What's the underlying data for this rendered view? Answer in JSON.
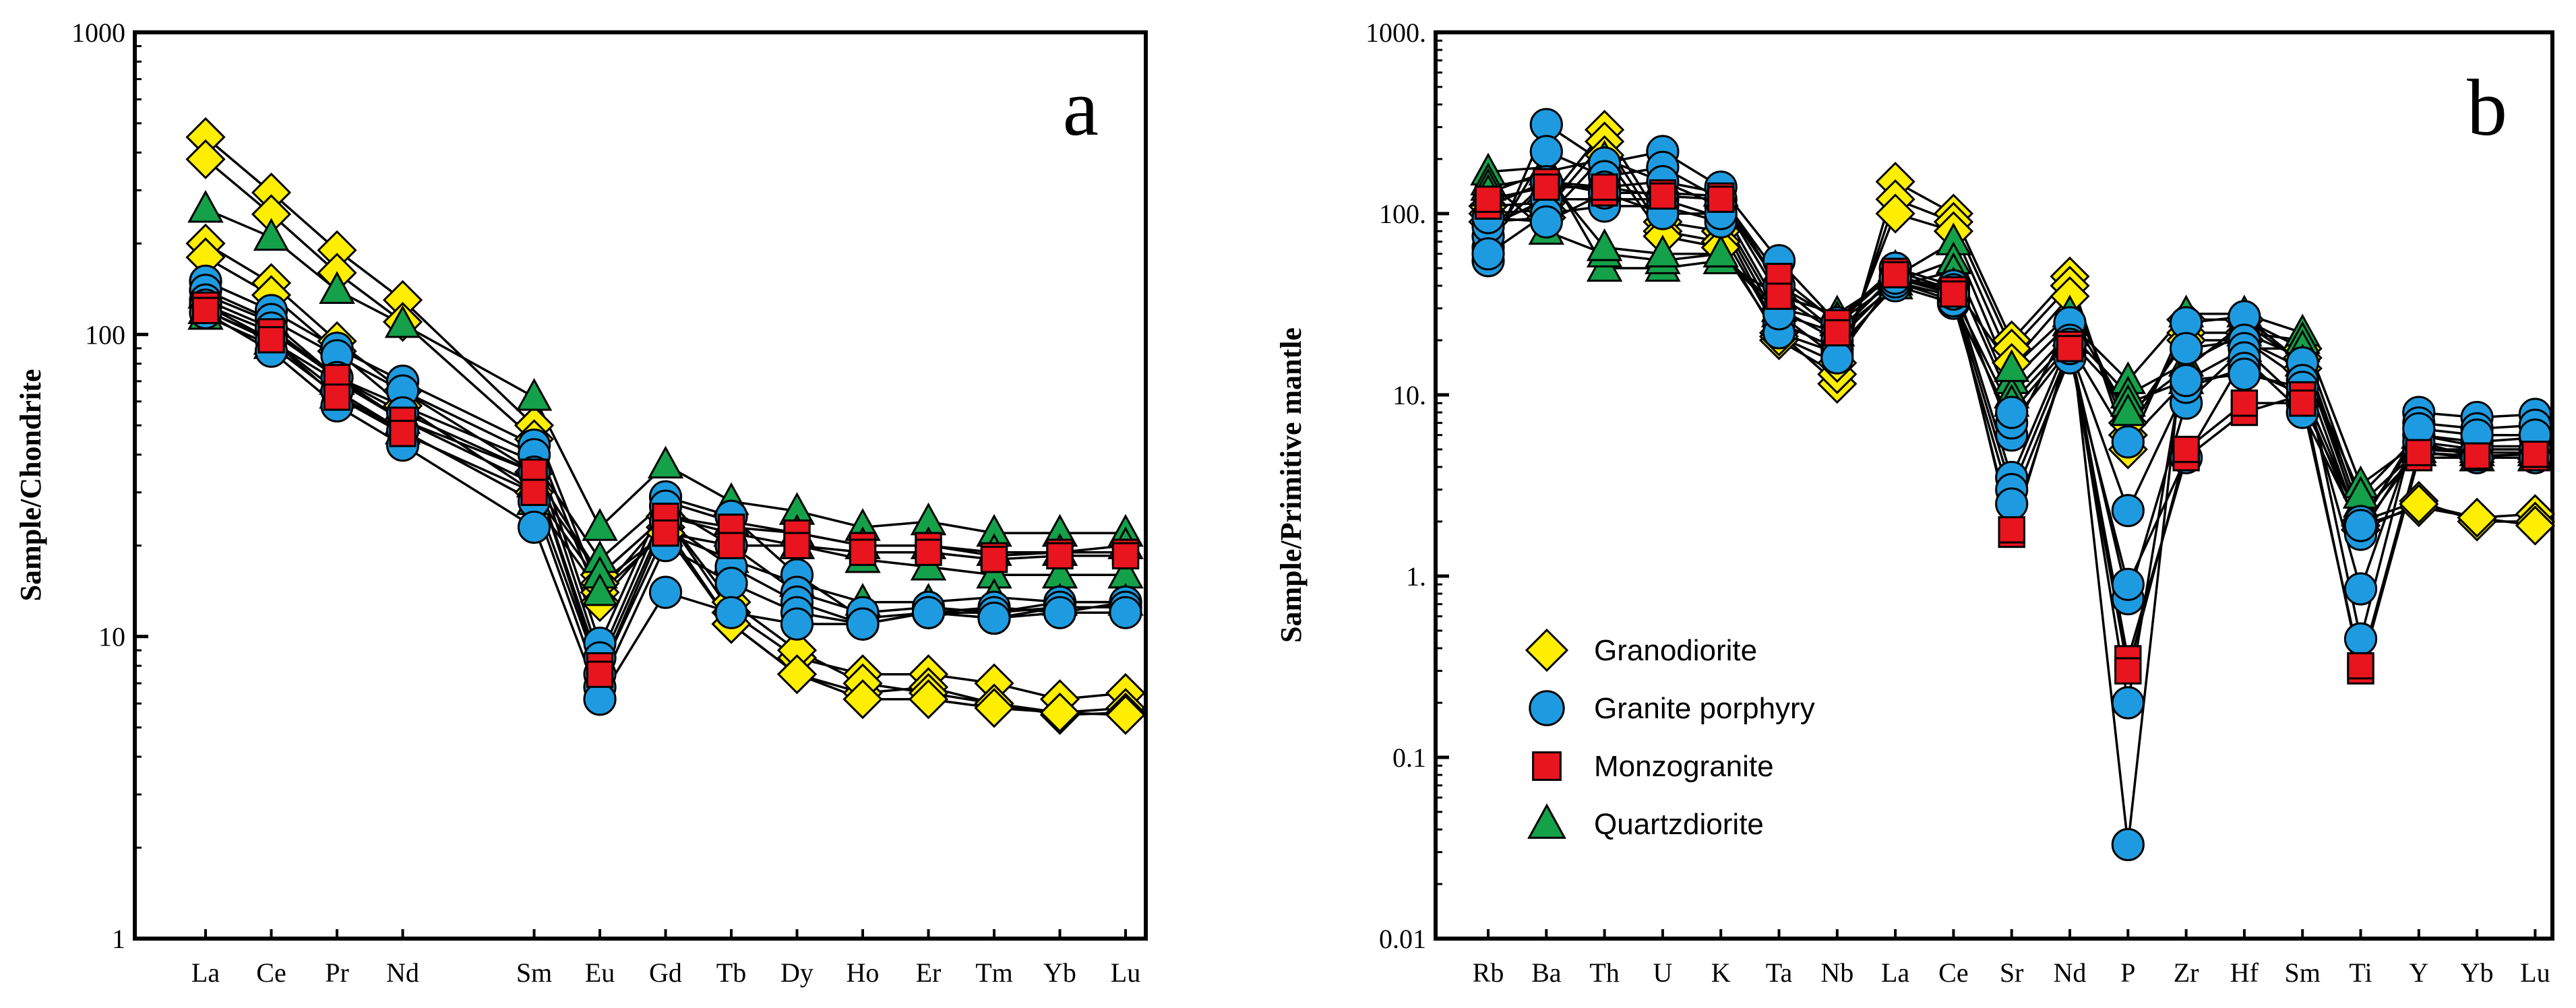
{
  "colors": {
    "granodiorite": "#ffee00",
    "granite_porphyry": "#1e9be0",
    "monzogranite": "#e8141e",
    "quartzdiorite": "#15a04a",
    "line": "#000000"
  },
  "chart_data": [
    {
      "panel": "a",
      "type": "line",
      "scale": "log",
      "ylabel": "Sample/Chondrite",
      "xlabel": "",
      "ylim": [
        1,
        1000
      ],
      "yticks": [
        {
          "value": 1,
          "label": "1"
        },
        {
          "value": 10,
          "label": "10"
        },
        {
          "value": 100,
          "label": "100"
        },
        {
          "value": 1000,
          "label": "1000"
        }
      ],
      "categories": [
        "La",
        "Ce",
        "Pr",
        "Nd",
        "",
        "Sm",
        "Eu",
        "Gd",
        "Tb",
        "Dy",
        "Ho",
        "Er",
        "Tm",
        "Yb",
        "Lu"
      ],
      "series": [
        {
          "group": "granodiorite",
          "values": [
            450,
            295,
            190,
            130,
            null,
            50,
            14,
            25,
            12,
            8.5,
            7.5,
            7.5,
            7,
            6.2,
            6.5
          ]
        },
        {
          "group": "granodiorite",
          "values": [
            380,
            250,
            160,
            110,
            null,
            45,
            13,
            23,
            11,
            7.5,
            6.5,
            6.8,
            6,
            5.6,
            5.8
          ]
        },
        {
          "group": "granodiorite",
          "values": [
            200,
            148,
            95,
            65,
            null,
            35,
            16,
            25,
            13,
            9,
            7,
            6.5,
            6,
            5.5,
            5.6
          ]
        },
        {
          "group": "granodiorite",
          "values": [
            180,
            135,
            88,
            58,
            null,
            30,
            15,
            22,
            11,
            7.5,
            6.2,
            6.2,
            5.8,
            5.6,
            5.5
          ]
        },
        {
          "group": "granite_porphyry",
          "values": [
            150,
            120,
            90,
            70,
            null,
            43,
            9.5,
            29,
            25,
            16,
            11.5,
            12,
            11.5,
            12.5,
            12.5
          ]
        },
        {
          "group": "granite_porphyry",
          "values": [
            140,
            112,
            85,
            65,
            null,
            40,
            8.5,
            27,
            20,
            14,
            12,
            12.5,
            12,
            13,
            13
          ]
        },
        {
          "group": "granite_porphyry",
          "values": [
            130,
            105,
            72,
            55,
            null,
            35,
            7.5,
            24,
            17,
            13,
            11,
            12,
            12.5,
            12,
            13
          ]
        },
        {
          "group": "granite_porphyry",
          "values": [
            125,
            96,
            65,
            48,
            null,
            28,
            6.8,
            20,
            15,
            12,
            11,
            12,
            12,
            12.5,
            12.5
          ]
        },
        {
          "group": "granite_porphyry",
          "values": [
            118,
            88,
            58,
            43,
            null,
            23,
            6.2,
            14,
            12,
            11,
            11,
            12,
            11.5,
            12,
            12
          ]
        },
        {
          "group": "monzogranite",
          "values": [
            125,
            102,
            72,
            52,
            null,
            35,
            8,
            25,
            23,
            22,
            20,
            20,
            18.5,
            19,
            19
          ]
        },
        {
          "group": "monzogranite",
          "values": [
            120,
            96,
            62,
            47,
            null,
            30,
            7.5,
            22,
            20,
            20,
            19,
            19,
            18,
            18.5,
            18.5
          ]
        },
        {
          "group": "quartzdiorite",
          "values": [
            260,
            210,
            140,
            108,
            null,
            62,
            23,
            37,
            28,
            26,
            23,
            24,
            22,
            22,
            22
          ]
        },
        {
          "group": "quartzdiorite",
          "values": [
            135,
            110,
            72,
            58,
            null,
            38,
            18,
            28,
            24,
            22,
            20,
            20,
            19,
            19,
            20
          ]
        },
        {
          "group": "quartzdiorite",
          "values": [
            120,
            95,
            70,
            52,
            null,
            32,
            16,
            25,
            22,
            20,
            18,
            17,
            16,
            16,
            16
          ]
        },
        {
          "group": "quartzdiorite",
          "values": [
            115,
            92,
            63,
            48,
            null,
            28,
            14,
            22,
            18,
            15,
            13,
            13,
            13.5,
            13,
            13
          ]
        }
      ]
    },
    {
      "panel": "b",
      "type": "line",
      "scale": "log",
      "ylabel": "Sample/Primitive mantle",
      "xlabel": "",
      "ylim": [
        0.01,
        1000
      ],
      "yticks": [
        {
          "value": 0.01,
          "label": "0.01"
        },
        {
          "value": 0.1,
          "label": "0.1"
        },
        {
          "value": 1,
          "label": "1."
        },
        {
          "value": 10,
          "label": "10."
        },
        {
          "value": 100,
          "label": "100."
        },
        {
          "value": 1000,
          "label": "1000."
        }
      ],
      "categories": [
        "Rb",
        "Ba",
        "Th",
        "U",
        "K",
        "Ta",
        "Nb",
        "La",
        "Ce",
        "Sr",
        "Nd",
        "P",
        "Zr",
        "Hf",
        "Sm",
        "Ti",
        "Y",
        "Yb",
        "Lu"
      ],
      "series": [
        {
          "group": "granodiorite",
          "values": [
            110,
            115,
            290,
            90,
            80,
            22,
            11.5,
            150,
            100,
            20,
            45,
            5,
            26,
            26,
            18,
            1.9,
            2.4,
            2.1,
            2.2
          ]
        },
        {
          "group": "granodiorite",
          "values": [
            100,
            105,
            250,
            80,
            70,
            20,
            13,
            120,
            90,
            18,
            40,
            6,
            22,
            22,
            16,
            2,
            2.6,
            2,
            2
          ]
        },
        {
          "group": "granodiorite",
          "values": [
            90,
            95,
            210,
            75,
            65,
            21,
            15,
            100,
            80,
            15,
            35,
            7,
            20,
            20,
            14,
            1.8,
            2.5,
            2.1,
            1.9
          ]
        },
        {
          "group": "granite_porphyry",
          "values": [
            55,
            310,
            190,
            220,
            140,
            55,
            25,
            50,
            40,
            6,
            25,
            0.033,
            25,
            27,
            15,
            0.45,
            8,
            7.5,
            7.8
          ]
        },
        {
          "group": "granite_porphyry",
          "values": [
            65,
            220,
            160,
            180,
            120,
            40,
            22,
            45,
            38,
            3.5,
            20,
            0.2,
            18,
            20,
            12,
            0.85,
            7,
            6.5,
            6.8
          ]
        },
        {
          "group": "granite_porphyry",
          "values": [
            75,
            150,
            140,
            150,
            110,
            30,
            20,
            42,
            35,
            3,
            18,
            0.75,
            9,
            18,
            9,
            2,
            6,
            5.5,
            5.8
          ]
        },
        {
          "group": "granite_porphyry",
          "values": [
            85,
            120,
            120,
            120,
            95,
            25,
            18,
            40,
            32,
            2.5,
            16,
            0.9,
            4.5,
            16,
            8,
            1.8,
            5,
            5,
            5
          ]
        },
        {
          "group": "granite_porphyry",
          "values": [
            60,
            100,
            110,
            110,
            90,
            22,
            17,
            42,
            33,
            7,
            18,
            2.3,
            11,
            14,
            10,
            1.7,
            5.5,
            4.5,
            4.5
          ]
        },
        {
          "group": "granite_porphyry",
          "values": [
            95,
            90,
            130,
            100,
            100,
            28,
            16,
            44,
            36,
            8,
            19,
            5.5,
            12,
            13,
            11,
            1.9,
            6.5,
            6,
            6
          ]
        },
        {
          "group": "monzogranite",
          "values": [
            110,
            150,
            130,
            130,
            125,
            45,
            25,
            48,
            38,
            1.7,
            19,
            0.35,
            4.5,
            8,
            10,
            0.3,
            4.5,
            4.5,
            4.5
          ]
        },
        {
          "group": "monzogranite",
          "values": [
            120,
            140,
            140,
            125,
            120,
            35,
            22,
            46,
            36,
            1.8,
            18,
            0.3,
            5,
            9,
            9,
            0.32,
            4.8,
            4.6,
            4.7
          ]
        },
        {
          "group": "quartzdiorite",
          "values": [
            170,
            180,
            50,
            50,
            55,
            35,
            28,
            45,
            70,
            12,
            25,
            12,
            28,
            28,
            22,
            3.2,
            5.5,
            5,
            5
          ]
        },
        {
          "group": "quartzdiorite",
          "values": [
            150,
            80,
            60,
            55,
            60,
            30,
            25,
            42,
            55,
            10,
            22,
            10,
            15,
            22,
            20,
            2.5,
            5,
            4.8,
            4.8
          ]
        },
        {
          "group": "quartzdiorite",
          "values": [
            140,
            160,
            65,
            60,
            60,
            28,
            22,
            40,
            48,
            9,
            20,
            9,
            12,
            18,
            18,
            2.2,
            4.8,
            4.5,
            4.5
          ]
        },
        {
          "group": "quartzdiorite",
          "values": [
            130,
            170,
            200,
            150,
            130,
            40,
            26,
            50,
            40,
            14,
            28,
            8,
            14,
            25,
            15,
            2.8,
            6,
            5.2,
            5.2
          ]
        }
      ]
    }
  ],
  "panels": {
    "a": {
      "letter": "a",
      "ylabel": "Sample/Chondrite"
    },
    "b": {
      "letter": "b",
      "ylabel": "Sample/Primitive mantle"
    }
  },
  "legend": [
    {
      "group": "granodiorite",
      "label": "Granodiorite",
      "marker": "diamond"
    },
    {
      "group": "granite_porphyry",
      "label": "Granite porphyry",
      "marker": "circle"
    },
    {
      "group": "monzogranite",
      "label": "Monzogranite",
      "marker": "square"
    },
    {
      "group": "quartzdiorite",
      "label": "Quartzdiorite",
      "marker": "triangle"
    }
  ]
}
